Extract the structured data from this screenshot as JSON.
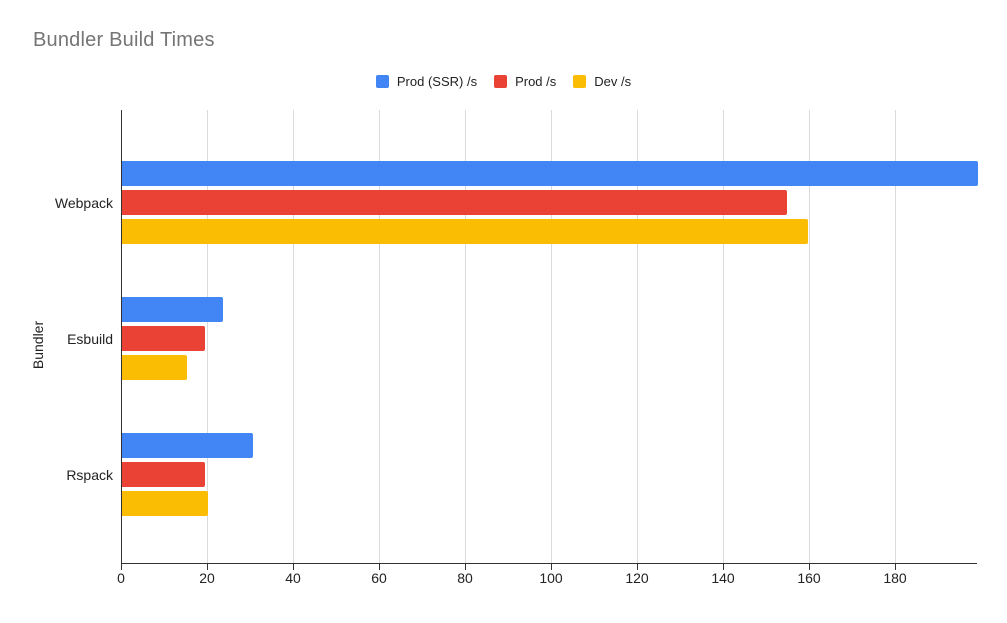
{
  "chart_data": {
    "type": "bar",
    "orientation": "horizontal",
    "title": "Bundler Build Times",
    "xlabel": "",
    "ylabel": "Bundler",
    "categories": [
      "Webpack",
      "Esbuild",
      "Rspack"
    ],
    "series": [
      {
        "name": "Prod (SSR) /s",
        "color": "#4285F4",
        "values": [
          199,
          23.5,
          30.5
        ]
      },
      {
        "name": "Prod /s",
        "color": "#EA4335",
        "values": [
          154.5,
          19.3,
          19.2
        ]
      },
      {
        "name": "Dev /s",
        "color": "#FBBC04",
        "values": [
          159.5,
          15.1,
          20
        ]
      }
    ],
    "x_axis": {
      "min": 0,
      "max": 199,
      "tick_step": 20,
      "tick_labels": [
        "0",
        "20",
        "40",
        "60",
        "80",
        "100",
        "120",
        "140",
        "160",
        "180"
      ]
    },
    "grid": true,
    "legend_position": "top"
  },
  "styles": {
    "background": "#ffffff",
    "title_color": "#757575",
    "label_color": "#222222",
    "axis_color": "#333333",
    "gridline_color": "#dadada"
  }
}
